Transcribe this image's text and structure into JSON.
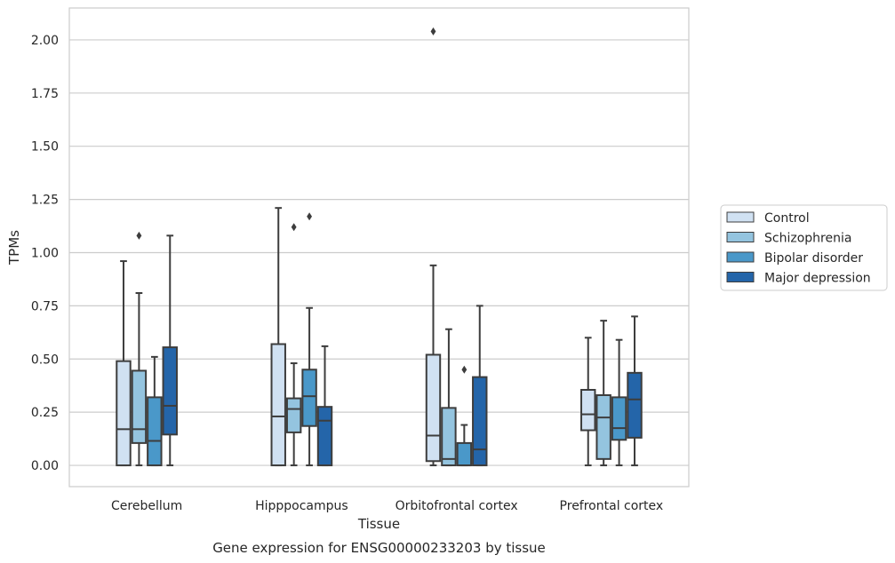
{
  "chart_data": {
    "type": "box",
    "xlabel": "Tissue",
    "ylabel": "TPMs",
    "caption": "Gene expression for ENSG00000233203 by tissue",
    "ylim": [
      -0.1,
      2.15
    ],
    "yticks": [
      "0.00",
      "0.25",
      "0.50",
      "0.75",
      "1.00",
      "1.25",
      "1.50",
      "1.75",
      "2.00"
    ],
    "grid": true,
    "legend_position": "right",
    "categories": [
      "Cerebellum",
      "Hipppocampus",
      "Orbitofrontal cortex",
      "Prefrontal cortex"
    ],
    "series": [
      {
        "name": "Control",
        "color": "#d0e1f2",
        "boxes": [
          {
            "whislo": 0.0,
            "q1": 0.0,
            "med": 0.17,
            "q3": 0.49,
            "whishi": 0.96,
            "fliers": []
          },
          {
            "whislo": 0.0,
            "q1": 0.0,
            "med": 0.23,
            "q3": 0.57,
            "whishi": 1.21,
            "fliers": []
          },
          {
            "whislo": 0.0,
            "q1": 0.02,
            "med": 0.14,
            "q3": 0.52,
            "whishi": 0.94,
            "fliers": [
              2.04
            ]
          },
          {
            "whislo": 0.0,
            "q1": 0.165,
            "med": 0.24,
            "q3": 0.355,
            "whishi": 0.6,
            "fliers": []
          }
        ]
      },
      {
        "name": "Schizophrenia",
        "color": "#94c4df",
        "boxes": [
          {
            "whislo": 0.0,
            "q1": 0.105,
            "med": 0.17,
            "q3": 0.445,
            "whishi": 0.81,
            "fliers": [
              1.08
            ]
          },
          {
            "whislo": 0.0,
            "q1": 0.155,
            "med": 0.265,
            "q3": 0.315,
            "whishi": 0.48,
            "fliers": [
              1.12
            ]
          },
          {
            "whislo": 0.0,
            "q1": 0.0,
            "med": 0.03,
            "q3": 0.27,
            "whishi": 0.64,
            "fliers": []
          },
          {
            "whislo": 0.0,
            "q1": 0.03,
            "med": 0.225,
            "q3": 0.33,
            "whishi": 0.68,
            "fliers": []
          }
        ]
      },
      {
        "name": "Bipolar disorder",
        "color": "#4a98c9",
        "boxes": [
          {
            "whislo": 0.0,
            "q1": 0.0,
            "med": 0.115,
            "q3": 0.32,
            "whishi": 0.51,
            "fliers": []
          },
          {
            "whislo": 0.0,
            "q1": 0.185,
            "med": 0.325,
            "q3": 0.45,
            "whishi": 0.74,
            "fliers": [
              1.17
            ]
          },
          {
            "whislo": 0.0,
            "q1": 0.0,
            "med": 0.0,
            "q3": 0.105,
            "whishi": 0.19,
            "fliers": [
              0.45
            ]
          },
          {
            "whislo": 0.0,
            "q1": 0.12,
            "med": 0.175,
            "q3": 0.32,
            "whishi": 0.59,
            "fliers": []
          }
        ]
      },
      {
        "name": "Major depression",
        "color": "#2465a9",
        "boxes": [
          {
            "whislo": 0.0,
            "q1": 0.145,
            "med": 0.28,
            "q3": 0.555,
            "whishi": 1.08,
            "fliers": []
          },
          {
            "whislo": 0.0,
            "q1": 0.0,
            "med": 0.21,
            "q3": 0.275,
            "whishi": 0.56,
            "fliers": []
          },
          {
            "whislo": 0.0,
            "q1": 0.0,
            "med": 0.075,
            "q3": 0.415,
            "whishi": 0.75,
            "fliers": []
          },
          {
            "whislo": 0.0,
            "q1": 0.13,
            "med": 0.31,
            "q3": 0.435,
            "whishi": 0.7,
            "fliers": []
          }
        ]
      }
    ]
  }
}
